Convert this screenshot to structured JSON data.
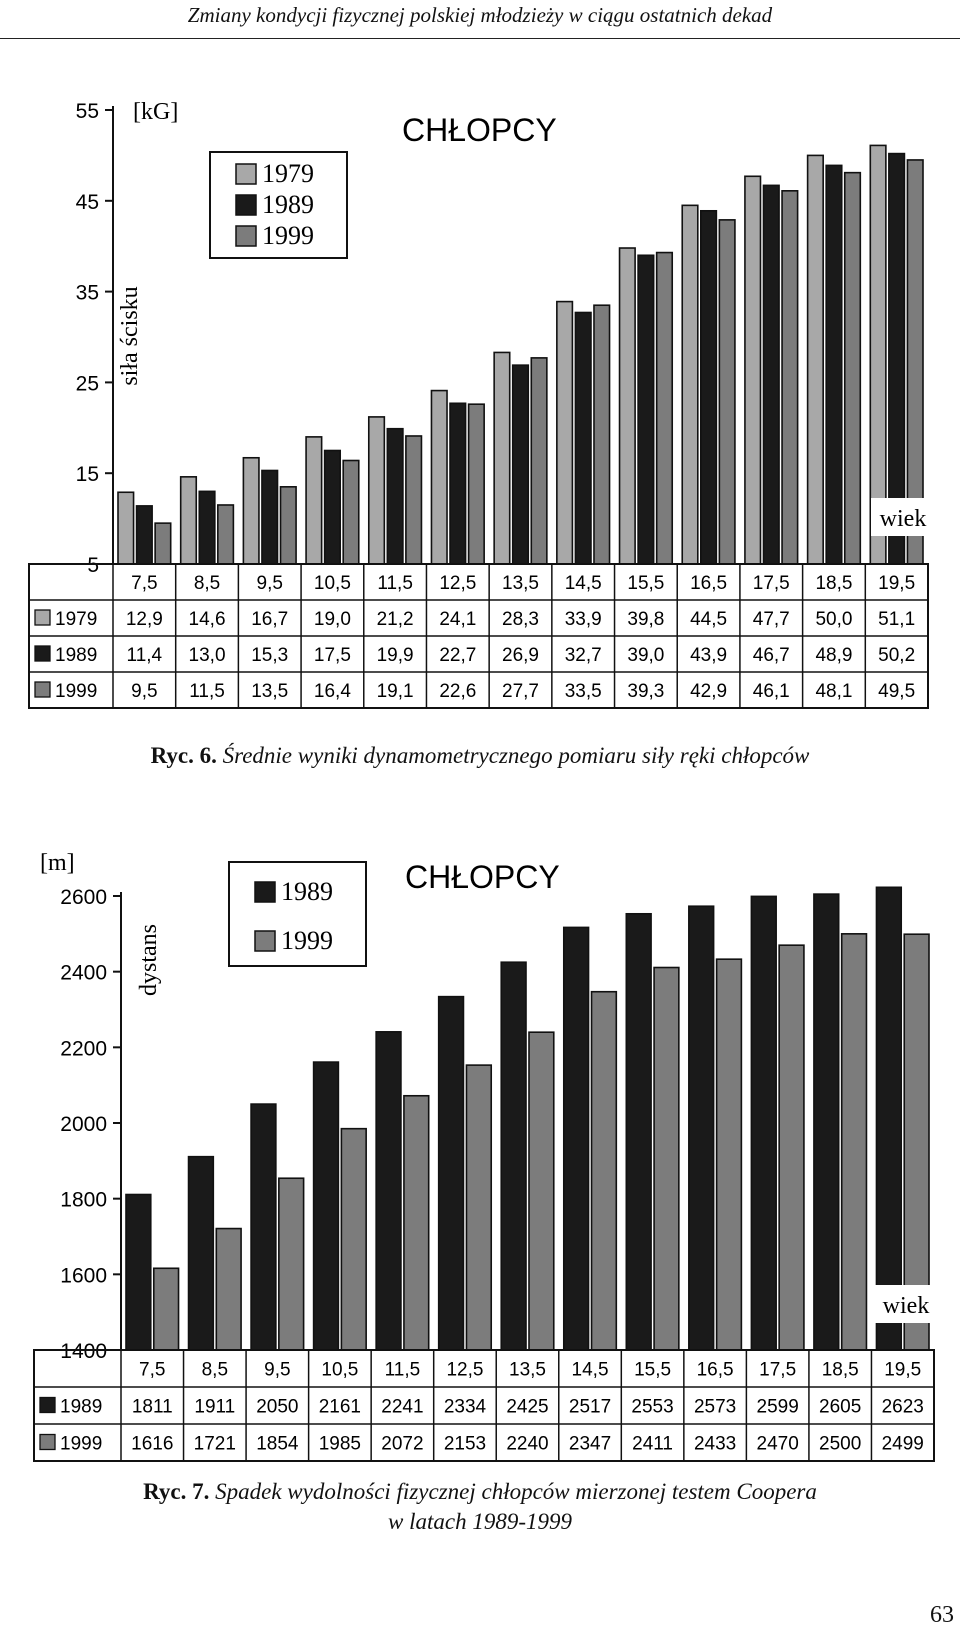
{
  "header": {
    "running_title": "Zmiany kondycji fizycznej polskiej młodzieży w ciągu ostatnich dekad"
  },
  "page_number": "63",
  "colors": {
    "s1979": "#a8a8a8",
    "s1989": "#1a1a1a",
    "s1999": "#7c7c7c",
    "stroke": "#111111"
  },
  "fig6": {
    "caption_label": "Ryc. 6.",
    "caption_text": "Średnie wyniki dynamometrycznego pomiaru siły ręki chłopców"
  },
  "fig7": {
    "caption_label": "Ryc. 7.",
    "caption_line1": "Spadek wydolności fizycznej chłopców mierzonej testem Coopera",
    "caption_line2": "w latach 1989-1999"
  },
  "chart_data": [
    {
      "type": "bar",
      "title": "CHŁOPCY",
      "unit": "[kG]",
      "ylabel": "siła ścisku",
      "xlabel": "wiek",
      "ylim": [
        5,
        55
      ],
      "yticks": [
        5,
        15,
        25,
        35,
        45,
        55
      ],
      "grid": false,
      "legend_position": "top-left",
      "categories": [
        "7,5",
        "8,5",
        "9,5",
        "10,5",
        "11,5",
        "12,5",
        "13,5",
        "14,5",
        "15,5",
        "16,5",
        "17,5",
        "18,5",
        "19,5"
      ],
      "series": [
        {
          "name": "1979",
          "values": [
            12.9,
            14.6,
            16.7,
            19.0,
            21.2,
            24.1,
            28.3,
            33.9,
            39.8,
            44.5,
            47.7,
            50.0,
            51.1
          ],
          "labels": [
            "12,9",
            "14,6",
            "16,7",
            "19,0",
            "21,2",
            "24,1",
            "28,3",
            "33,9",
            "39,8",
            "44,5",
            "47,7",
            "50,0",
            "51,1"
          ]
        },
        {
          "name": "1989",
          "values": [
            11.4,
            13.0,
            15.3,
            17.5,
            19.9,
            22.7,
            26.9,
            32.7,
            39.0,
            43.9,
            46.7,
            48.9,
            50.2
          ],
          "labels": [
            "11,4",
            "13,0",
            "15,3",
            "17,5",
            "19,9",
            "22,7",
            "26,9",
            "32,7",
            "39,0",
            "43,9",
            "46,7",
            "48,9",
            "50,2"
          ]
        },
        {
          "name": "1999",
          "values": [
            9.5,
            11.5,
            13.5,
            16.4,
            19.1,
            22.6,
            27.7,
            33.5,
            39.3,
            42.9,
            46.1,
            48.1,
            49.5
          ],
          "labels": [
            "9,5",
            "11,5",
            "13,5",
            "16,4",
            "19,1",
            "22,6",
            "27,7",
            "33,5",
            "39,3",
            "42,9",
            "46,1",
            "48,1",
            "49,5"
          ]
        }
      ]
    },
    {
      "type": "bar",
      "title": "CHŁOPCY",
      "unit": "[m]",
      "ylabel": "dystans",
      "xlabel": "wiek",
      "ylim": [
        1400,
        2600
      ],
      "yticks": [
        1400,
        1600,
        1800,
        2000,
        2200,
        2400,
        2600
      ],
      "grid": false,
      "legend_position": "top-left",
      "categories": [
        "7,5",
        "8,5",
        "9,5",
        "10,5",
        "11,5",
        "12,5",
        "13,5",
        "14,5",
        "15,5",
        "16,5",
        "17,5",
        "18,5",
        "19,5"
      ],
      "series": [
        {
          "name": "1989",
          "values": [
            1811,
            1911,
            2050,
            2161,
            2241,
            2334,
            2425,
            2517,
            2553,
            2573,
            2599,
            2605,
            2623
          ],
          "labels": [
            "1811",
            "1911",
            "2050",
            "2161",
            "2241",
            "2334",
            "2425",
            "2517",
            "2553",
            "2573",
            "2599",
            "2605",
            "2623"
          ]
        },
        {
          "name": "1999",
          "values": [
            1616,
            1721,
            1854,
            1985,
            2072,
            2153,
            2240,
            2347,
            2411,
            2433,
            2470,
            2500,
            2499
          ],
          "labels": [
            "1616",
            "1721",
            "1854",
            "1985",
            "2072",
            "2153",
            "2240",
            "2347",
            "2411",
            "2433",
            "2470",
            "2500",
            "2499"
          ]
        }
      ]
    }
  ]
}
